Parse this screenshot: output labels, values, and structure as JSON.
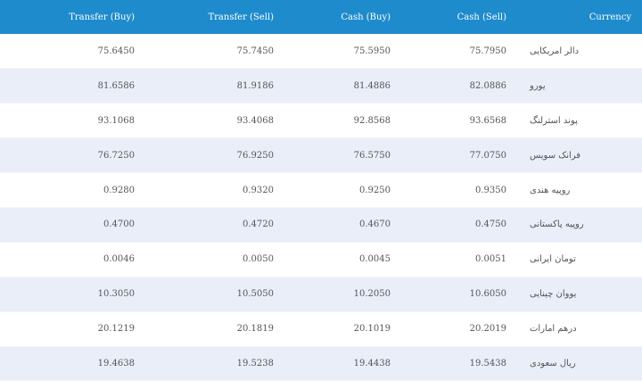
{
  "headers": {
    "transfer_buy": "Transfer (Buy)",
    "transfer_sell": "Transfer (Sell)",
    "cash_buy": "Cash (Buy)",
    "cash_sell": "Cash (Sell)",
    "currency": "Currency"
  },
  "rows": [
    {
      "transfer_buy": "75.6450",
      "transfer_sell": "75.7450",
      "cash_buy": "75.5950",
      "cash_sell": "75.7950",
      "currency": "دالر امریکایی"
    },
    {
      "transfer_buy": "81.6586",
      "transfer_sell": "81.9186",
      "cash_buy": "81.4886",
      "cash_sell": "82.0886",
      "currency": "یورو"
    },
    {
      "transfer_buy": "93.1068",
      "transfer_sell": "93.4068",
      "cash_buy": "92.8568",
      "cash_sell": "93.6568",
      "currency": "پوند استرلنگ"
    },
    {
      "transfer_buy": "76.7250",
      "transfer_sell": "76.9250",
      "cash_buy": "76.5750",
      "cash_sell": "77.0750",
      "currency": "فرانک سویس"
    },
    {
      "transfer_buy": "0.9280",
      "transfer_sell": "0.9320",
      "cash_buy": "0.9250",
      "cash_sell": "0.9350",
      "currency": "روپیه هندی"
    },
    {
      "transfer_buy": "0.4700",
      "transfer_sell": "0.4720",
      "cash_buy": "0.4670",
      "cash_sell": "0.4750",
      "currency": "روپیه پاکستانی"
    },
    {
      "transfer_buy": "0.0046",
      "transfer_sell": "0.0050",
      "cash_buy": "0.0045",
      "cash_sell": "0.0051",
      "currency": "تومان ایرانی"
    },
    {
      "transfer_buy": "10.3050",
      "transfer_sell": "10.5050",
      "cash_buy": "10.2050",
      "cash_sell": "10.6050",
      "currency": "یووان چینایی"
    },
    {
      "transfer_buy": "20.1219",
      "transfer_sell": "20.1819",
      "cash_buy": "20.1019",
      "cash_sell": "20.2019",
      "currency": "درهم امارات"
    },
    {
      "transfer_buy": "19.4638",
      "transfer_sell": "19.5238",
      "cash_buy": "19.4438",
      "cash_sell": "19.5438",
      "currency": "ریال سعودی"
    }
  ],
  "colors": {
    "header_bg": "#1e8bcd",
    "header_text": "#ffffff",
    "row_alt_bg": "#e9eef9",
    "cell_text": "#555555"
  }
}
